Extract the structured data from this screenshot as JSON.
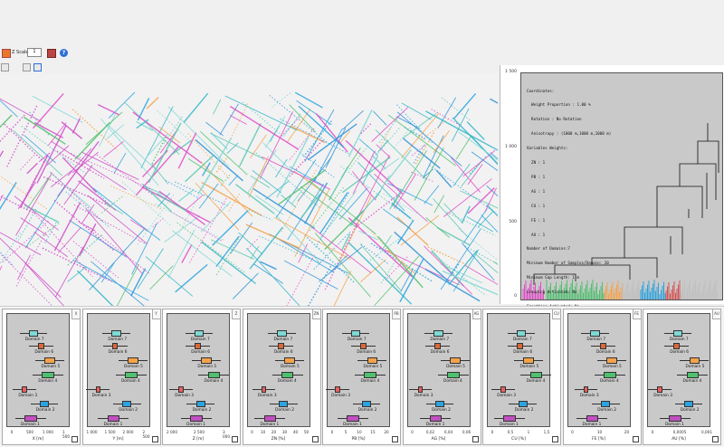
{
  "toolbar": {
    "scale_label": "Z Scale",
    "scale_value": "1",
    "help_label": "?"
  },
  "dendrogram": {
    "info_lines": [
      "Coordinates:",
      "  Weight Proportion : 1.00 %",
      "  Rotation : No Rotation",
      "  Anisotropy : (1000 m,1000 m,1000 m)",
      "Variables Weights:",
      "  ZN : 1",
      "  PB : 1",
      "  AG : 1",
      "  CU : 1",
      "  FE : 1",
      "  AU : 1",
      "Number of Domains:7",
      "Minimum Number of Samples/Domain: 20",
      "Minimum Gap Length: 1 m",
      "Grouping Activated: No",
      "Smoothing Activated: No"
    ],
    "y_ticks": [
      "1 500",
      "1 000",
      "500",
      "0"
    ],
    "domain_colors": [
      "#e04cc8",
      "#4fc06e",
      "#f5a34a",
      "#c0c0c0",
      "#2aa3e0",
      "#d95050",
      "#4ad6d0"
    ]
  },
  "boxplots": [
    {
      "tab": "X",
      "xlabel": "X [m]",
      "ticks": [
        "0",
        "500",
        "1 000",
        "1 500"
      ]
    },
    {
      "tab": "Y",
      "xlabel": "Y [m]",
      "ticks": [
        "1 000",
        "1 500",
        "2 000",
        "2 500"
      ]
    },
    {
      "tab": "Z",
      "xlabel": "Z [m]",
      "ticks": [
        "2 000",
        "2 500",
        "3 000"
      ]
    },
    {
      "tab": "ZN",
      "xlabel": "ZN [%]",
      "ticks": [
        "0",
        "10",
        "20",
        "30",
        "40",
        "50"
      ]
    },
    {
      "tab": "PB",
      "xlabel": "PB [%]",
      "ticks": [
        "0",
        "5",
        "10",
        "15",
        "20"
      ]
    },
    {
      "tab": "AG",
      "xlabel": "AG [%]",
      "ticks": [
        "0",
        "0,02",
        "0,04",
        "0,06"
      ]
    },
    {
      "tab": "CU",
      "xlabel": "CU [%]",
      "ticks": [
        "0",
        "0,5",
        "1",
        "1,5"
      ]
    },
    {
      "tab": "FE",
      "xlabel": "FE [%]",
      "ticks": [
        "0",
        "10",
        "20"
      ]
    },
    {
      "tab": "AU",
      "xlabel": "AU [%]",
      "ticks": [
        "0",
        "0,0005",
        "0,001"
      ]
    }
  ],
  "domains": [
    "Domain 7",
    "Domain 6",
    "Domain 5",
    "Domain 4",
    "Domain 3",
    "Domain 2",
    "Domain 1"
  ],
  "domain_box_colors": [
    "#7fd8d4",
    "#d9683a",
    "#f5a34a",
    "#4fc06e",
    "#e86060",
    "#2aa3e0",
    "#c050c0"
  ]
}
